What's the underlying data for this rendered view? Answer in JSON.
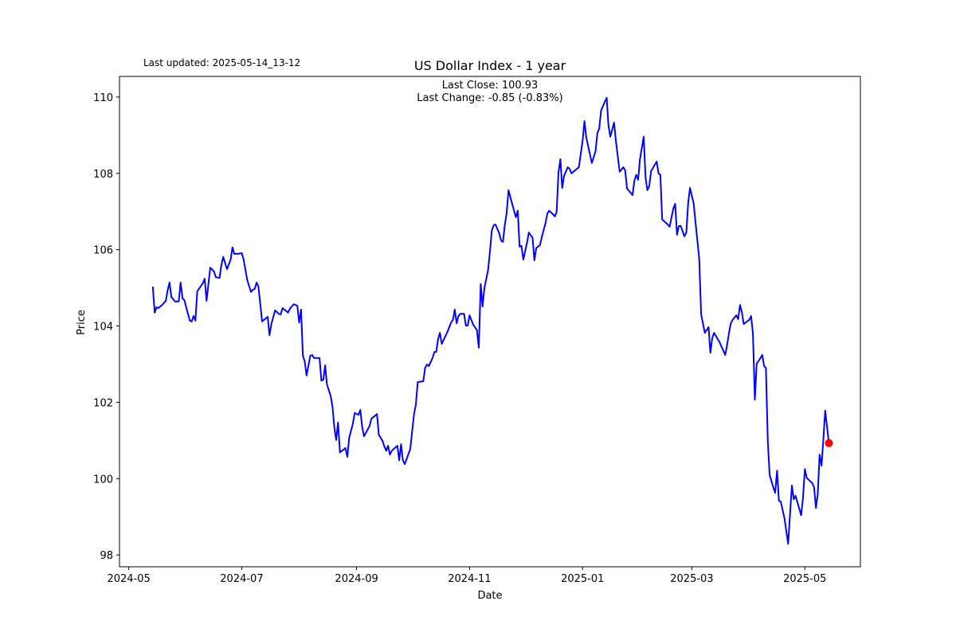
{
  "header": {
    "last_updated": "Last updated: 2025-05-14_13-12"
  },
  "chart_data": {
    "type": "line",
    "title": "US Dollar Index - 1 year",
    "xlabel": "Date",
    "ylabel": "Price",
    "annotations": [
      "Last Close: 100.93",
      "Last Change: -0.85 (-0.83%)"
    ],
    "xlim": [
      "2024-04-26",
      "2025-05-31"
    ],
    "ylim": [
      97.69,
      110.54
    ],
    "x_ticks": [
      "2024-05",
      "2024-07",
      "2024-09",
      "2024-11",
      "2025-01",
      "2025-03",
      "2025-05"
    ],
    "y_ticks": [
      "98",
      "100",
      "102",
      "104",
      "106",
      "108",
      "110"
    ],
    "grid": false,
    "line_color": "#0000ff",
    "marker_color": "#ff0000",
    "last_point": {
      "date": "2025-05-14",
      "price": 100.93
    },
    "series": [
      {
        "points": [
          [
            "2024-05-14",
            105.03
          ],
          [
            "2024-05-15",
            104.35
          ],
          [
            "2024-05-16",
            104.49
          ],
          [
            "2024-05-17",
            104.47
          ],
          [
            "2024-05-19",
            104.55
          ],
          [
            "2024-05-21",
            104.66
          ],
          [
            "2024-05-22",
            104.93
          ],
          [
            "2024-05-23",
            105.14
          ],
          [
            "2024-05-24",
            104.76
          ],
          [
            "2024-05-26",
            104.64
          ],
          [
            "2024-05-28",
            104.64
          ],
          [
            "2024-05-29",
            105.14
          ],
          [
            "2024-05-30",
            104.72
          ],
          [
            "2024-05-31",
            104.68
          ],
          [
            "2024-06-01",
            104.49
          ],
          [
            "2024-06-03",
            104.14
          ],
          [
            "2024-06-04",
            104.12
          ],
          [
            "2024-06-05",
            104.26
          ],
          [
            "2024-06-06",
            104.14
          ],
          [
            "2024-06-07",
            104.91
          ],
          [
            "2024-06-10",
            105.12
          ],
          [
            "2024-06-11",
            105.24
          ],
          [
            "2024-06-12",
            104.66
          ],
          [
            "2024-06-14",
            105.53
          ],
          [
            "2024-06-16",
            105.43
          ],
          [
            "2024-06-17",
            105.28
          ],
          [
            "2024-06-19",
            105.26
          ],
          [
            "2024-06-20",
            105.6
          ],
          [
            "2024-06-21",
            105.81
          ],
          [
            "2024-06-23",
            105.49
          ],
          [
            "2024-06-25",
            105.74
          ],
          [
            "2024-06-26",
            106.06
          ],
          [
            "2024-06-27",
            105.89
          ],
          [
            "2024-06-29",
            105.89
          ],
          [
            "2024-07-01",
            105.91
          ],
          [
            "2024-07-02",
            105.74
          ],
          [
            "2024-07-04",
            105.2
          ],
          [
            "2024-07-06",
            104.89
          ],
          [
            "2024-07-07",
            104.95
          ],
          [
            "2024-07-08",
            104.97
          ],
          [
            "2024-07-09",
            105.14
          ],
          [
            "2024-07-10",
            105.03
          ],
          [
            "2024-07-12",
            104.12
          ],
          [
            "2024-07-15",
            104.24
          ],
          [
            "2024-07-16",
            103.76
          ],
          [
            "2024-07-17",
            104.05
          ],
          [
            "2024-07-19",
            104.41
          ],
          [
            "2024-07-21",
            104.32
          ],
          [
            "2024-07-22",
            104.3
          ],
          [
            "2024-07-23",
            104.47
          ],
          [
            "2024-07-25",
            104.39
          ],
          [
            "2024-07-26",
            104.35
          ],
          [
            "2024-07-27",
            104.45
          ],
          [
            "2024-07-28",
            104.51
          ],
          [
            "2024-07-29",
            104.57
          ],
          [
            "2024-07-31",
            104.53
          ],
          [
            "2024-08-01",
            104.09
          ],
          [
            "2024-08-02",
            104.43
          ],
          [
            "2024-08-03",
            103.22
          ],
          [
            "2024-08-04",
            103.07
          ],
          [
            "2024-08-05",
            102.7
          ],
          [
            "2024-08-07",
            103.22
          ],
          [
            "2024-08-08",
            103.24
          ],
          [
            "2024-08-09",
            103.16
          ],
          [
            "2024-08-12",
            103.16
          ],
          [
            "2024-08-13",
            102.57
          ],
          [
            "2024-08-14",
            102.59
          ],
          [
            "2024-08-15",
            102.97
          ],
          [
            "2024-08-16",
            102.47
          ],
          [
            "2024-08-18",
            102.17
          ],
          [
            "2024-08-19",
            101.88
          ],
          [
            "2024-08-20",
            101.34
          ],
          [
            "2024-08-21",
            101.01
          ],
          [
            "2024-08-22",
            101.47
          ],
          [
            "2024-08-23",
            100.69
          ],
          [
            "2024-08-25",
            100.76
          ],
          [
            "2024-08-26",
            100.8
          ],
          [
            "2024-08-27",
            100.57
          ],
          [
            "2024-08-28",
            101.07
          ],
          [
            "2024-08-30",
            101.44
          ],
          [
            "2024-08-31",
            101.72
          ],
          [
            "2024-09-02",
            101.67
          ],
          [
            "2024-09-03",
            101.8
          ],
          [
            "2024-09-04",
            101.36
          ],
          [
            "2024-09-05",
            101.11
          ],
          [
            "2024-09-08",
            101.38
          ],
          [
            "2024-09-09",
            101.57
          ],
          [
            "2024-09-12",
            101.69
          ],
          [
            "2024-09-13",
            101.15
          ],
          [
            "2024-09-15",
            100.99
          ],
          [
            "2024-09-16",
            100.84
          ],
          [
            "2024-09-17",
            100.73
          ],
          [
            "2024-09-18",
            100.86
          ],
          [
            "2024-09-19",
            100.63
          ],
          [
            "2024-09-20",
            100.73
          ],
          [
            "2024-09-22",
            100.82
          ],
          [
            "2024-09-23",
            100.86
          ],
          [
            "2024-09-24",
            100.48
          ],
          [
            "2024-09-25",
            100.9
          ],
          [
            "2024-09-26",
            100.48
          ],
          [
            "2024-09-27",
            100.38
          ],
          [
            "2024-09-30",
            100.78
          ],
          [
            "2024-10-02",
            101.69
          ],
          [
            "2024-10-03",
            101.94
          ],
          [
            "2024-10-04",
            102.53
          ],
          [
            "2024-10-07",
            102.55
          ],
          [
            "2024-10-08",
            102.9
          ],
          [
            "2024-10-09",
            102.99
          ],
          [
            "2024-10-10",
            102.95
          ],
          [
            "2024-10-12",
            103.16
          ],
          [
            "2024-10-13",
            103.32
          ],
          [
            "2024-10-14",
            103.32
          ],
          [
            "2024-10-15",
            103.66
          ],
          [
            "2024-10-16",
            103.82
          ],
          [
            "2024-10-17",
            103.53
          ],
          [
            "2024-10-20",
            103.84
          ],
          [
            "2024-10-22",
            104.09
          ],
          [
            "2024-10-23",
            104.16
          ],
          [
            "2024-10-24",
            104.43
          ],
          [
            "2024-10-25",
            104.07
          ],
          [
            "2024-10-26",
            104.26
          ],
          [
            "2024-10-27",
            104.32
          ],
          [
            "2024-10-29",
            104.32
          ],
          [
            "2024-10-30",
            104.01
          ],
          [
            "2024-10-31",
            104.01
          ],
          [
            "2024-11-01",
            104.28
          ],
          [
            "2024-11-03",
            104.03
          ],
          [
            "2024-11-05",
            103.89
          ],
          [
            "2024-11-06",
            103.43
          ],
          [
            "2024-11-07",
            105.1
          ],
          [
            "2024-11-08",
            104.51
          ],
          [
            "2024-11-09",
            104.99
          ],
          [
            "2024-11-11",
            105.47
          ],
          [
            "2024-11-12",
            105.95
          ],
          [
            "2024-11-13",
            106.49
          ],
          [
            "2024-11-14",
            106.64
          ],
          [
            "2024-11-15",
            106.66
          ],
          [
            "2024-11-17",
            106.43
          ],
          [
            "2024-11-18",
            106.24
          ],
          [
            "2024-11-19",
            106.2
          ],
          [
            "2024-11-20",
            106.64
          ],
          [
            "2024-11-21",
            106.95
          ],
          [
            "2024-11-22",
            107.56
          ],
          [
            "2024-11-24",
            107.2
          ],
          [
            "2024-11-26",
            106.85
          ],
          [
            "2024-11-27",
            107.02
          ],
          [
            "2024-11-28",
            106.08
          ],
          [
            "2024-11-29",
            106.1
          ],
          [
            "2024-11-30",
            105.74
          ],
          [
            "2024-12-02",
            106.18
          ],
          [
            "2024-12-03",
            106.45
          ],
          [
            "2024-12-05",
            106.31
          ],
          [
            "2024-12-06",
            105.72
          ],
          [
            "2024-12-07",
            106.04
          ],
          [
            "2024-12-09",
            106.12
          ],
          [
            "2024-12-10",
            106.33
          ],
          [
            "2024-12-12",
            106.7
          ],
          [
            "2024-12-13",
            106.95
          ],
          [
            "2024-12-14",
            107.02
          ],
          [
            "2024-12-16",
            106.93
          ],
          [
            "2024-12-17",
            106.87
          ],
          [
            "2024-12-18",
            106.99
          ],
          [
            "2024-12-19",
            108.02
          ],
          [
            "2024-12-20",
            108.37
          ],
          [
            "2024-12-21",
            107.62
          ],
          [
            "2024-12-22",
            107.93
          ],
          [
            "2024-12-24",
            108.16
          ],
          [
            "2024-12-25",
            108.12
          ],
          [
            "2024-12-26",
            108.0
          ],
          [
            "2024-12-28",
            108.08
          ],
          [
            "2024-12-30",
            108.16
          ],
          [
            "2025-01-01",
            108.85
          ],
          [
            "2025-01-02",
            109.37
          ],
          [
            "2025-01-03",
            108.94
          ],
          [
            "2025-01-06",
            108.27
          ],
          [
            "2025-01-08",
            108.58
          ],
          [
            "2025-01-09",
            109.06
          ],
          [
            "2025-01-10",
            109.17
          ],
          [
            "2025-01-11",
            109.65
          ],
          [
            "2025-01-14",
            109.98
          ],
          [
            "2025-01-15",
            109.25
          ],
          [
            "2025-01-16",
            108.96
          ],
          [
            "2025-01-18",
            109.33
          ],
          [
            "2025-01-19",
            108.85
          ],
          [
            "2025-01-21",
            108.04
          ],
          [
            "2025-01-22",
            108.1
          ],
          [
            "2025-01-23",
            108.16
          ],
          [
            "2025-01-24",
            108.08
          ],
          [
            "2025-01-25",
            107.6
          ],
          [
            "2025-01-28",
            107.43
          ],
          [
            "2025-01-29",
            107.81
          ],
          [
            "2025-01-30",
            107.96
          ],
          [
            "2025-01-31",
            107.83
          ],
          [
            "2025-02-01",
            108.37
          ],
          [
            "2025-02-03",
            108.96
          ],
          [
            "2025-02-04",
            107.89
          ],
          [
            "2025-02-05",
            107.56
          ],
          [
            "2025-02-06",
            107.66
          ],
          [
            "2025-02-07",
            108.06
          ],
          [
            "2025-02-10",
            108.31
          ],
          [
            "2025-02-11",
            108.0
          ],
          [
            "2025-02-12",
            107.96
          ],
          [
            "2025-02-13",
            106.79
          ],
          [
            "2025-02-16",
            106.66
          ],
          [
            "2025-02-17",
            106.6
          ],
          [
            "2025-02-19",
            107.08
          ],
          [
            "2025-02-20",
            107.2
          ],
          [
            "2025-02-21",
            106.39
          ],
          [
            "2025-02-22",
            106.62
          ],
          [
            "2025-02-23",
            106.62
          ],
          [
            "2025-02-25",
            106.35
          ],
          [
            "2025-02-26",
            106.45
          ],
          [
            "2025-02-27",
            107.22
          ],
          [
            "2025-02-28",
            107.62
          ],
          [
            "2025-03-02",
            107.2
          ],
          [
            "2025-03-03",
            106.7
          ],
          [
            "2025-03-05",
            105.76
          ],
          [
            "2025-03-06",
            104.3
          ],
          [
            "2025-03-08",
            103.82
          ],
          [
            "2025-03-10",
            103.97
          ],
          [
            "2025-03-11",
            103.3
          ],
          [
            "2025-03-12",
            103.68
          ],
          [
            "2025-03-13",
            103.82
          ],
          [
            "2025-03-16",
            103.57
          ],
          [
            "2025-03-19",
            103.24
          ],
          [
            "2025-03-20",
            103.49
          ],
          [
            "2025-03-21",
            103.8
          ],
          [
            "2025-03-22",
            104.07
          ],
          [
            "2025-03-23",
            104.16
          ],
          [
            "2025-03-25",
            104.28
          ],
          [
            "2025-03-26",
            104.18
          ],
          [
            "2025-03-27",
            104.55
          ],
          [
            "2025-03-28",
            104.37
          ],
          [
            "2025-03-29",
            104.05
          ],
          [
            "2025-04-01",
            104.16
          ],
          [
            "2025-04-02",
            104.26
          ],
          [
            "2025-04-03",
            103.8
          ],
          [
            "2025-04-04",
            102.07
          ],
          [
            "2025-04-05",
            103.01
          ],
          [
            "2025-04-07",
            103.16
          ],
          [
            "2025-04-08",
            103.24
          ],
          [
            "2025-04-09",
            102.95
          ],
          [
            "2025-04-10",
            102.9
          ],
          [
            "2025-04-11",
            100.96
          ],
          [
            "2025-04-12",
            100.09
          ],
          [
            "2025-04-14",
            99.77
          ],
          [
            "2025-04-15",
            99.63
          ],
          [
            "2025-04-16",
            100.21
          ],
          [
            "2025-04-17",
            99.42
          ],
          [
            "2025-04-18",
            99.4
          ],
          [
            "2025-04-20",
            98.96
          ],
          [
            "2025-04-22",
            98.29
          ],
          [
            "2025-04-24",
            99.82
          ],
          [
            "2025-04-25",
            99.46
          ],
          [
            "2025-04-26",
            99.55
          ],
          [
            "2025-04-29",
            99.04
          ],
          [
            "2025-04-30",
            99.48
          ],
          [
            "2025-05-01",
            100.25
          ],
          [
            "2025-05-02",
            100.02
          ],
          [
            "2025-05-05",
            99.88
          ],
          [
            "2025-05-06",
            99.77
          ],
          [
            "2025-05-07",
            99.23
          ],
          [
            "2025-05-08",
            99.61
          ],
          [
            "2025-05-09",
            100.63
          ],
          [
            "2025-05-10",
            100.34
          ],
          [
            "2025-05-11",
            101.03
          ],
          [
            "2025-05-12",
            101.78
          ],
          [
            "2025-05-14",
            100.93
          ]
        ]
      }
    ]
  }
}
